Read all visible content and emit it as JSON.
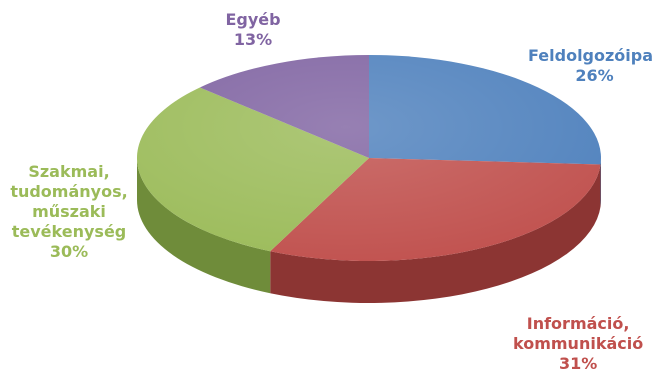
{
  "chart_data": {
    "type": "pie",
    "title": "",
    "slices": [
      {
        "label": "Feldolgozóipar",
        "label_lines": [
          "Feldolgozóipar"
        ],
        "value": 26,
        "value_text": "26%",
        "color": "#4F81BD",
        "side": "#3A6293"
      },
      {
        "label": "Információ, kommunikáció",
        "label_lines": [
          "Információ,",
          "kommunikáció"
        ],
        "value": 31,
        "value_text": "31%",
        "color": "#C0504D",
        "side": "#8C3533"
      },
      {
        "label": "Szakmai, tudományos, műszaki tevékenység",
        "label_lines": [
          "Szakmai,",
          "tudományos,",
          "műszaki",
          "tevékenység"
        ],
        "value": 30,
        "value_text": "30%",
        "color": "#9BBB59",
        "side": "#6F8C3A"
      },
      {
        "label": "Egyéb",
        "label_lines": [
          "Egyéb"
        ],
        "value": 13,
        "value_text": "13%",
        "color": "#8064A2",
        "side": "#5C467A"
      }
    ],
    "label_position": "outside",
    "legend": "none"
  }
}
